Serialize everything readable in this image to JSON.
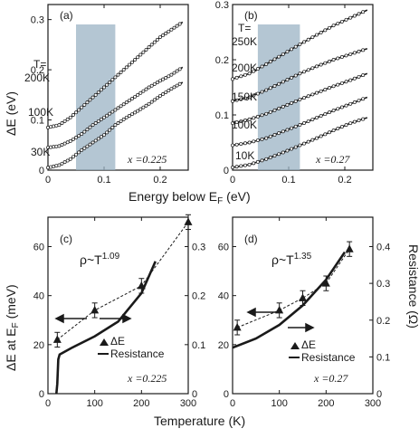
{
  "chart_data": [
    {
      "type": "line",
      "panel": "(a)",
      "x_range": [
        0,
        0.25
      ],
      "x_ticks": [
        "0",
        "0.1",
        "0.2"
      ],
      "y_range": [
        0,
        0.33
      ],
      "y_ticks": [
        "0",
        "0.1",
        "0.2",
        "0.3"
      ],
      "y_label": "ΔE (eV)",
      "shaded_band": [
        0.05,
        0.12
      ],
      "annotation_x": "x =0.225",
      "series": [
        {
          "name": "30K",
          "x": [
            0,
            0.02,
            0.04,
            0.06,
            0.08,
            0.1,
            0.12,
            0.14,
            0.16,
            0.18,
            0.2,
            0.22,
            0.24
          ],
          "y": [
            0.005,
            0.01,
            0.022,
            0.04,
            0.055,
            0.07,
            0.09,
            0.105,
            0.118,
            0.132,
            0.148,
            0.162,
            0.175
          ]
        },
        {
          "name": "100K",
          "x": [
            0,
            0.02,
            0.04,
            0.06,
            0.08,
            0.1,
            0.12,
            0.14,
            0.16,
            0.18,
            0.2,
            0.22,
            0.24
          ],
          "y": [
            0.045,
            0.048,
            0.058,
            0.072,
            0.09,
            0.105,
            0.12,
            0.135,
            0.15,
            0.165,
            0.178,
            0.19,
            0.205
          ]
        },
        {
          "name": "200K",
          "x": [
            0,
            0.02,
            0.04,
            0.06,
            0.08,
            0.1,
            0.12,
            0.14,
            0.16,
            0.18,
            0.2,
            0.22,
            0.24
          ],
          "y": [
            0.085,
            0.09,
            0.105,
            0.125,
            0.145,
            0.165,
            0.185,
            0.205,
            0.225,
            0.245,
            0.265,
            0.28,
            0.295
          ]
        }
      ],
      "series_labels": [
        "T=",
        "200K",
        "100K",
        "30K"
      ]
    },
    {
      "type": "line",
      "panel": "(b)",
      "x_range": [
        0,
        0.25
      ],
      "x_ticks": [
        "0",
        "0.1",
        "0.2"
      ],
      "y_range": [
        0,
        0.3
      ],
      "y_ticks": [
        "0",
        "0.1",
        "0.2",
        "0.3"
      ],
      "shaded_band": [
        0.045,
        0.12
      ],
      "annotation_x": "x =0.27",
      "series": [
        {
          "name": "10K",
          "x": [
            0,
            0.03,
            0.06,
            0.09,
            0.12,
            0.15,
            0.18,
            0.21,
            0.24
          ],
          "y": [
            0.005,
            0.01,
            0.02,
            0.032,
            0.045,
            0.058,
            0.072,
            0.085,
            0.095
          ]
        },
        {
          "name": "100K",
          "x": [
            0,
            0.03,
            0.06,
            0.09,
            0.12,
            0.15,
            0.18,
            0.21,
            0.24
          ],
          "y": [
            0.045,
            0.05,
            0.058,
            0.07,
            0.082,
            0.095,
            0.108,
            0.12,
            0.132
          ]
        },
        {
          "name": "150K",
          "x": [
            0,
            0.03,
            0.06,
            0.09,
            0.12,
            0.15,
            0.18,
            0.21,
            0.24
          ],
          "y": [
            0.085,
            0.092,
            0.102,
            0.115,
            0.128,
            0.14,
            0.152,
            0.163,
            0.175
          ]
        },
        {
          "name": "200K",
          "x": [
            0,
            0.03,
            0.06,
            0.09,
            0.12,
            0.15,
            0.18,
            0.21,
            0.24
          ],
          "y": [
            0.125,
            0.132,
            0.145,
            0.16,
            0.175,
            0.188,
            0.2,
            0.21,
            0.22
          ]
        },
        {
          "name": "250K",
          "x": [
            0,
            0.03,
            0.06,
            0.09,
            0.12,
            0.15,
            0.18,
            0.21,
            0.24
          ],
          "y": [
            0.165,
            0.175,
            0.192,
            0.21,
            0.228,
            0.245,
            0.262,
            0.276,
            0.29
          ]
        }
      ],
      "series_labels": [
        "T=",
        "250K",
        "200K",
        "150K",
        "100K",
        "10K"
      ]
    },
    {
      "type": "scatter",
      "panel": "(c)",
      "x_range": [
        0,
        300
      ],
      "x_ticks": [
        "0",
        "100",
        "200",
        "300"
      ],
      "y_range": [
        0,
        72
      ],
      "y_ticks": [
        "0",
        "20",
        "40",
        "60"
      ],
      "y2_range": [
        0,
        0.36
      ],
      "y2_ticks": [
        "0",
        "0.1",
        "0.2",
        "0.3"
      ],
      "fit_label": "ρ~T",
      "fit_exponent": "1.09",
      "annotation_x": "x =0.225",
      "series": [
        {
          "name": "ΔE",
          "x": [
            20,
            100,
            200,
            300
          ],
          "y": [
            22,
            34,
            44,
            70
          ],
          "err": [
            3,
            3,
            3,
            3
          ]
        },
        {
          "name": "Resistance",
          "x": [
            18,
            20,
            22,
            25,
            50,
            100,
            150,
            200,
            230
          ],
          "y": [
            0,
            0.02,
            0.07,
            0.08,
            0.093,
            0.117,
            0.147,
            0.205,
            0.27
          ]
        }
      ],
      "legend": [
        "ΔE",
        "Resistance"
      ]
    },
    {
      "type": "scatter",
      "panel": "(d)",
      "x_range": [
        0,
        300
      ],
      "x_ticks": [
        "0",
        "100",
        "200",
        "300"
      ],
      "y_range": [
        0,
        72
      ],
      "y_ticks": [
        "0",
        "20",
        "40",
        "60"
      ],
      "y2_range": [
        0,
        0.48
      ],
      "y2_ticks": [
        "0",
        "0.1",
        "0.2",
        "0.3",
        "0.4"
      ],
      "y2_label": "Resistance (Ω)",
      "fit_label": "ρ~T",
      "fit_exponent": "1.35",
      "annotation_x": "x =0.27",
      "series": [
        {
          "name": "ΔE",
          "x": [
            10,
            100,
            150,
            200,
            250
          ],
          "y": [
            27,
            34,
            39,
            45,
            59
          ],
          "err": [
            3,
            3,
            3,
            3,
            3
          ]
        },
        {
          "name": "Resistance",
          "x": [
            0,
            50,
            100,
            150,
            200,
            240
          ],
          "y": [
            0.125,
            0.15,
            0.187,
            0.24,
            0.31,
            0.385
          ]
        }
      ],
      "legend": [
        "ΔE",
        "Resistance"
      ]
    }
  ],
  "xlabel_top": "Energy below E",
  "xlabel_top_sub": "F",
  "xlabel_top_unit": "(eV)",
  "xlabel_bottom": "Temperature (K)",
  "ylabel_bottom_left": "ΔE at E",
  "ylabel_bottom_left_sub": "F",
  "ylabel_bottom_left_unit": "(meV)"
}
